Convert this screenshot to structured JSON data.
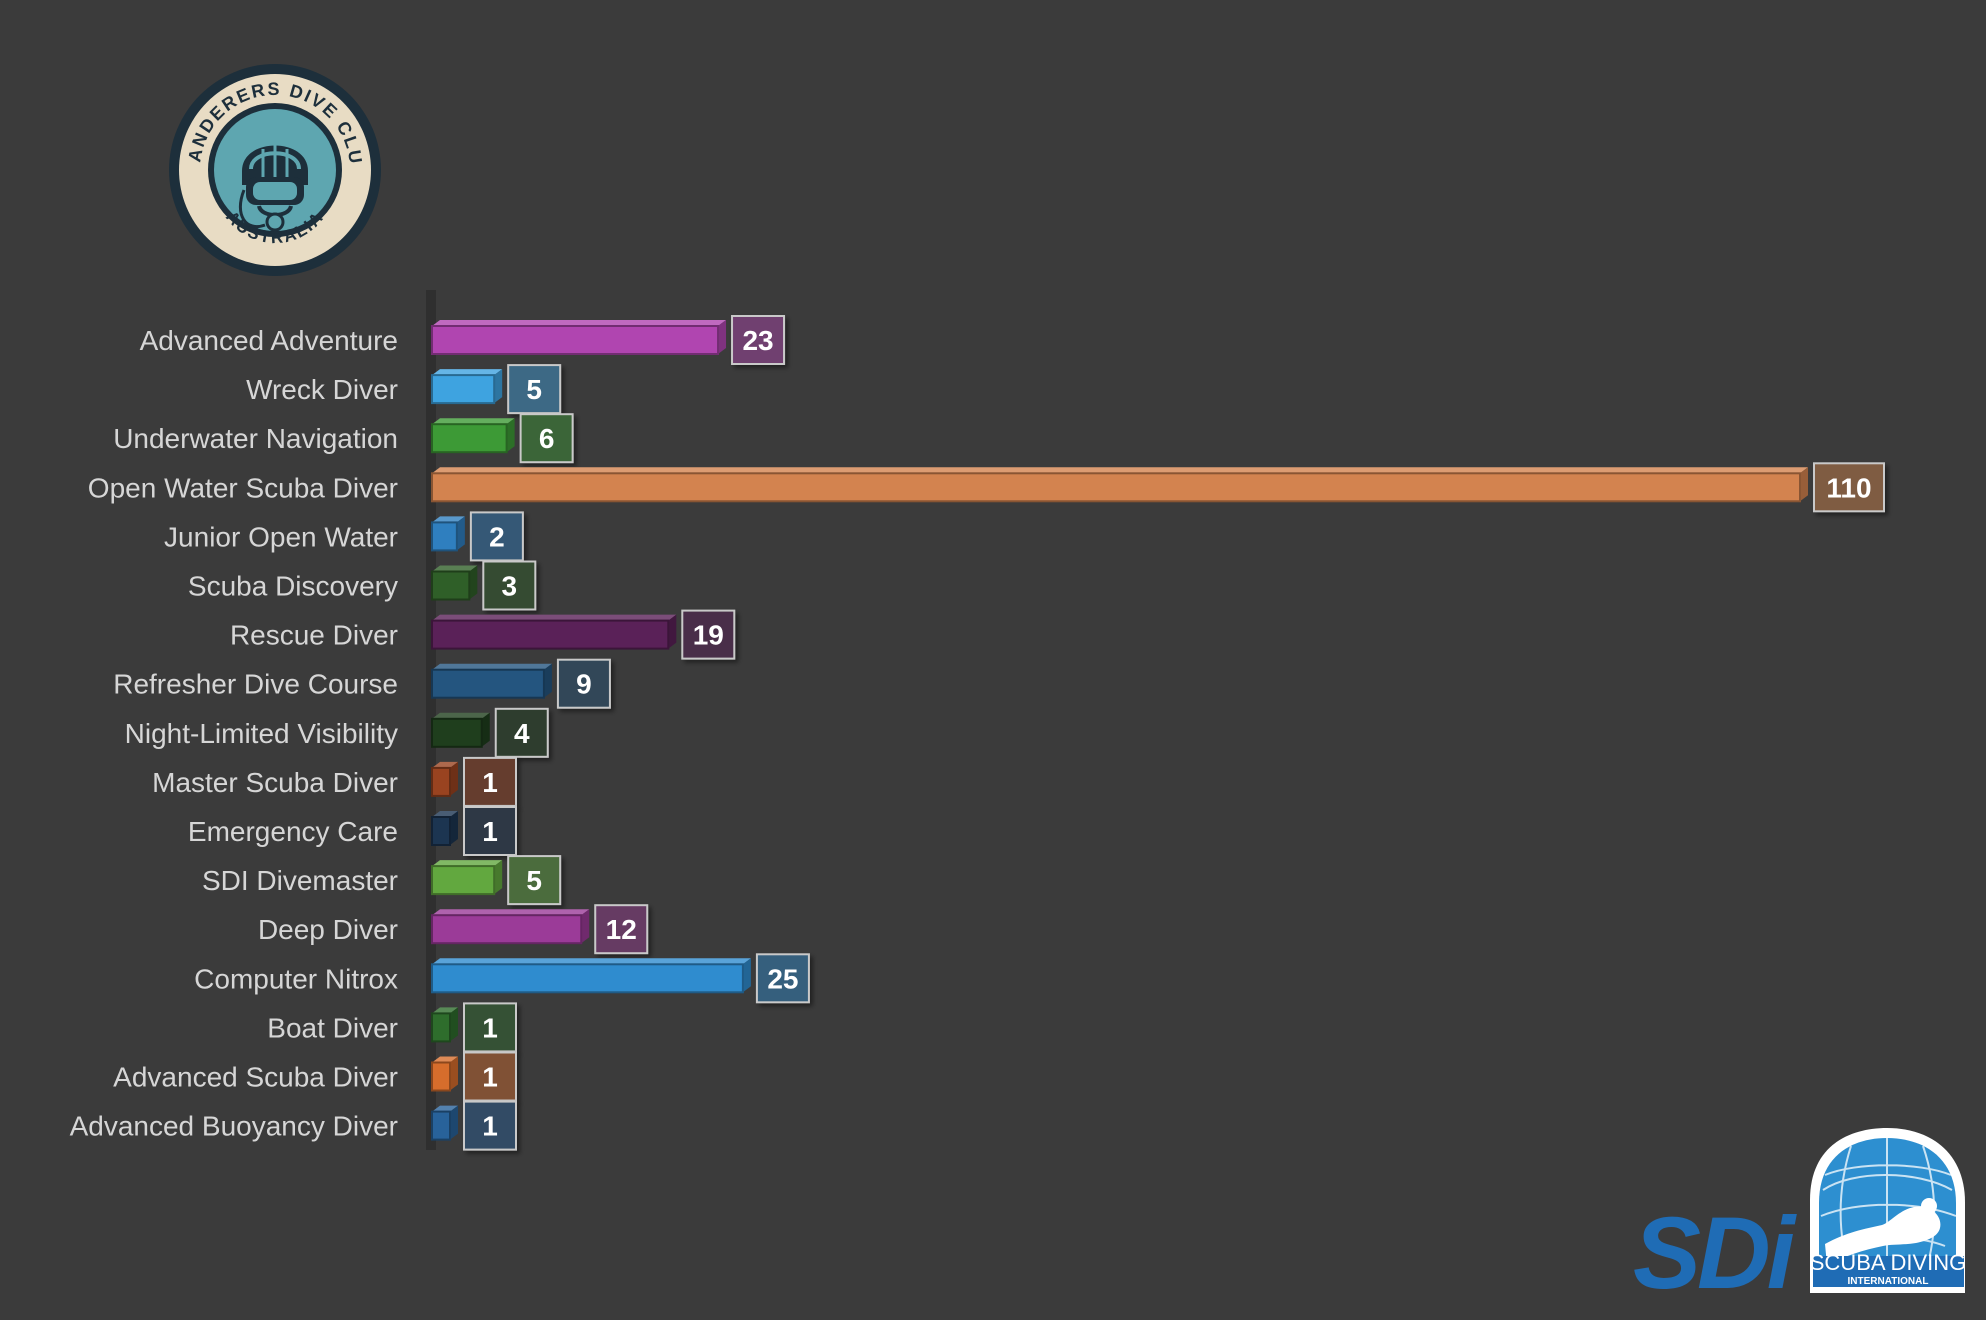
{
  "branding": {
    "club_logo": {
      "top_text": "WANDERERS DIVE CLUB",
      "bottom_text": "AUSTRALIA",
      "colors": {
        "ring": "#1d2f3b",
        "inner": "#5ea6b0",
        "cream": "#e8dcc4"
      },
      "icon": "diver-helmet-icon"
    },
    "sdi_logo": {
      "brand_text": "SDi",
      "line1": "SCUBA DIVING",
      "line2": "INTERNATIONAL",
      "colors": {
        "brand": "#1f6cb5",
        "globe": "#2d8fd0",
        "white": "#ffffff"
      },
      "icon": "diver-globe-icon"
    }
  },
  "chart_data": {
    "type": "bar",
    "orientation": "horizontal",
    "categories": [
      "Advanced Adventure",
      "Wreck Diver",
      "Underwater Navigation",
      "Open Water  Scuba Diver",
      "Junior Open Water",
      "Scuba Discovery",
      "Rescue Diver",
      "Refresher Dive Course",
      "Night-Limited Visibility",
      "Master Scuba Diver",
      "Emergency Care",
      "SDI Divemaster",
      "Deep Diver",
      "Computer Nitrox",
      "Boat Diver",
      "Advanced Scuba Diver",
      "Advanced Buoyancy Diver"
    ],
    "values": [
      23,
      5,
      6,
      110,
      2,
      3,
      19,
      9,
      4,
      1,
      1,
      5,
      12,
      25,
      1,
      1,
      1
    ],
    "bar_colors": [
      "#b045b0",
      "#3ea3e0",
      "#3d9a36",
      "#d3834f",
      "#2f7fbf",
      "#2f5f28",
      "#5a2158",
      "#24557f",
      "#1f3e1d",
      "#994320",
      "#1c3551",
      "#62a83f",
      "#9b3b98",
      "#2f8ccf",
      "#2e6d2c",
      "#d66d2c",
      "#28629a"
    ],
    "title": "",
    "xlabel": "",
    "ylabel": "",
    "xlim": [
      0,
      110
    ],
    "grid": false,
    "legend": "none",
    "data_labels": true
  }
}
